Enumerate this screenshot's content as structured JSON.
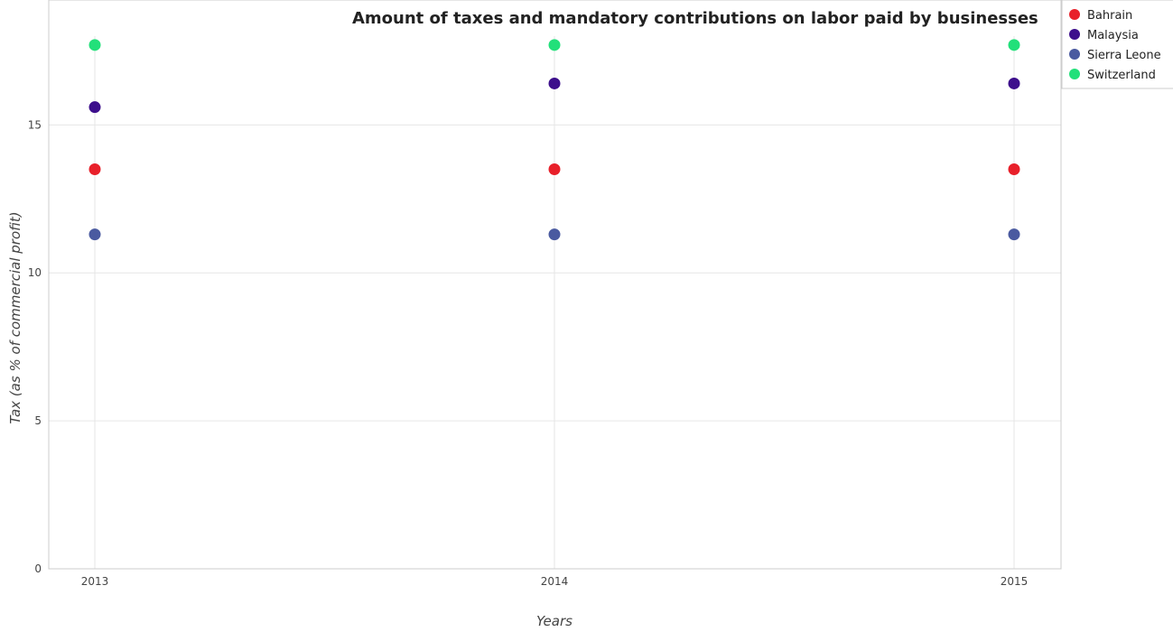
{
  "chart_data": {
    "type": "scatter",
    "title": "Amount of taxes and mandatory contributions on labor paid by businesses",
    "xlabel": "Years",
    "ylabel": "Tax (as % of commercial profit)",
    "categories": [
      "2013",
      "2014",
      "2015"
    ],
    "ylim": [
      0,
      18
    ],
    "yticks": [
      0,
      5,
      10,
      15
    ],
    "grid": true,
    "legend_position": "top-right",
    "series": [
      {
        "name": "Bahrain",
        "color": "#e8202a",
        "values": [
          13.5,
          13.5,
          13.5
        ]
      },
      {
        "name": "Malaysia",
        "color": "#3d0f8c",
        "values": [
          15.6,
          16.4,
          16.4
        ]
      },
      {
        "name": "Sierra Leone",
        "color": "#4a5aa0",
        "values": [
          11.3,
          11.3,
          11.3
        ]
      },
      {
        "name": "Switzerland",
        "color": "#22e07a",
        "values": [
          17.7,
          17.7,
          17.7
        ]
      }
    ]
  }
}
